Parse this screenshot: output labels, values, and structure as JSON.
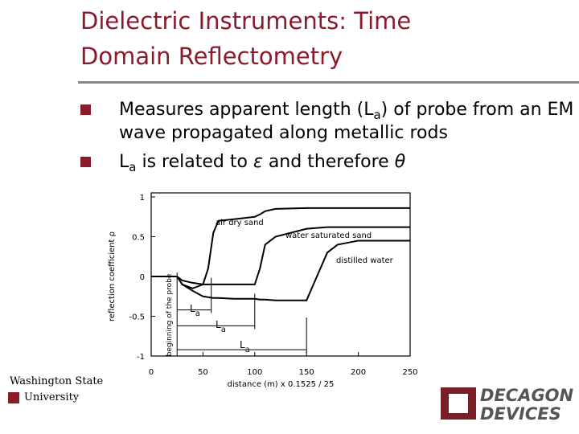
{
  "header": {
    "title": "Dielectric Instruments: Time Domain Reflectometry"
  },
  "bullets": [
    {
      "parts": [
        "Measures apparent length (L",
        "a",
        ") of probe from an EM wave propagated along metallic rods"
      ]
    },
    {
      "parts": [
        "L",
        "a",
        " is related to ",
        "ε",
        " and therefore ",
        "θ"
      ]
    }
  ],
  "chart_data": {
    "type": "line",
    "xlabel": "distance (m) x 0.1525 / 25",
    "ylabel": "reflection coefficient ρ",
    "x": [
      0,
      25,
      30,
      40,
      50,
      55,
      60,
      65,
      80,
      100,
      105,
      110,
      120,
      150,
      160,
      170,
      180,
      200,
      250
    ],
    "series": [
      {
        "name": "air dry sand",
        "color": "#000000",
        "values": [
          0,
          0,
          -0.1,
          -0.15,
          -0.1,
          0.1,
          0.55,
          0.7,
          0.72,
          0.75,
          0.78,
          0.82,
          0.85,
          0.86,
          0.86,
          0.86,
          0.86,
          0.86,
          0.86
        ]
      },
      {
        "name": "water saturated sand",
        "color": "#000000",
        "values": [
          0,
          0,
          -0.05,
          -0.08,
          -0.1,
          -0.1,
          -0.1,
          -0.1,
          -0.1,
          -0.1,
          0.1,
          0.4,
          0.5,
          0.6,
          0.61,
          0.62,
          0.62,
          0.62,
          0.62
        ]
      },
      {
        "name": "distilled water",
        "color": "#000000",
        "values": [
          0,
          0,
          -0.1,
          -0.18,
          -0.25,
          -0.26,
          -0.27,
          -0.27,
          -0.28,
          -0.28,
          -0.29,
          -0.29,
          -0.3,
          -0.3,
          0,
          0.3,
          0.4,
          0.45,
          0.45
        ]
      }
    ],
    "xlim": [
      0,
      250
    ],
    "xticks": [
      0,
      50,
      100,
      150,
      200,
      250
    ],
    "ylim": [
      -1,
      1
    ],
    "yticks": [
      -1,
      -0.5,
      0,
      0.5,
      1
    ],
    "annotations": [
      {
        "parts": [
          "L",
          "a"
        ]
      },
      {
        "parts": [
          "L",
          "a"
        ]
      },
      {
        "parts": [
          "L",
          "a"
        ]
      },
      {
        "text": "beginning of the probe"
      }
    ]
  },
  "logos": {
    "wsu": [
      "Washington State",
      "University"
    ],
    "decagon": [
      "DECAGON",
      "DEVICES"
    ]
  }
}
